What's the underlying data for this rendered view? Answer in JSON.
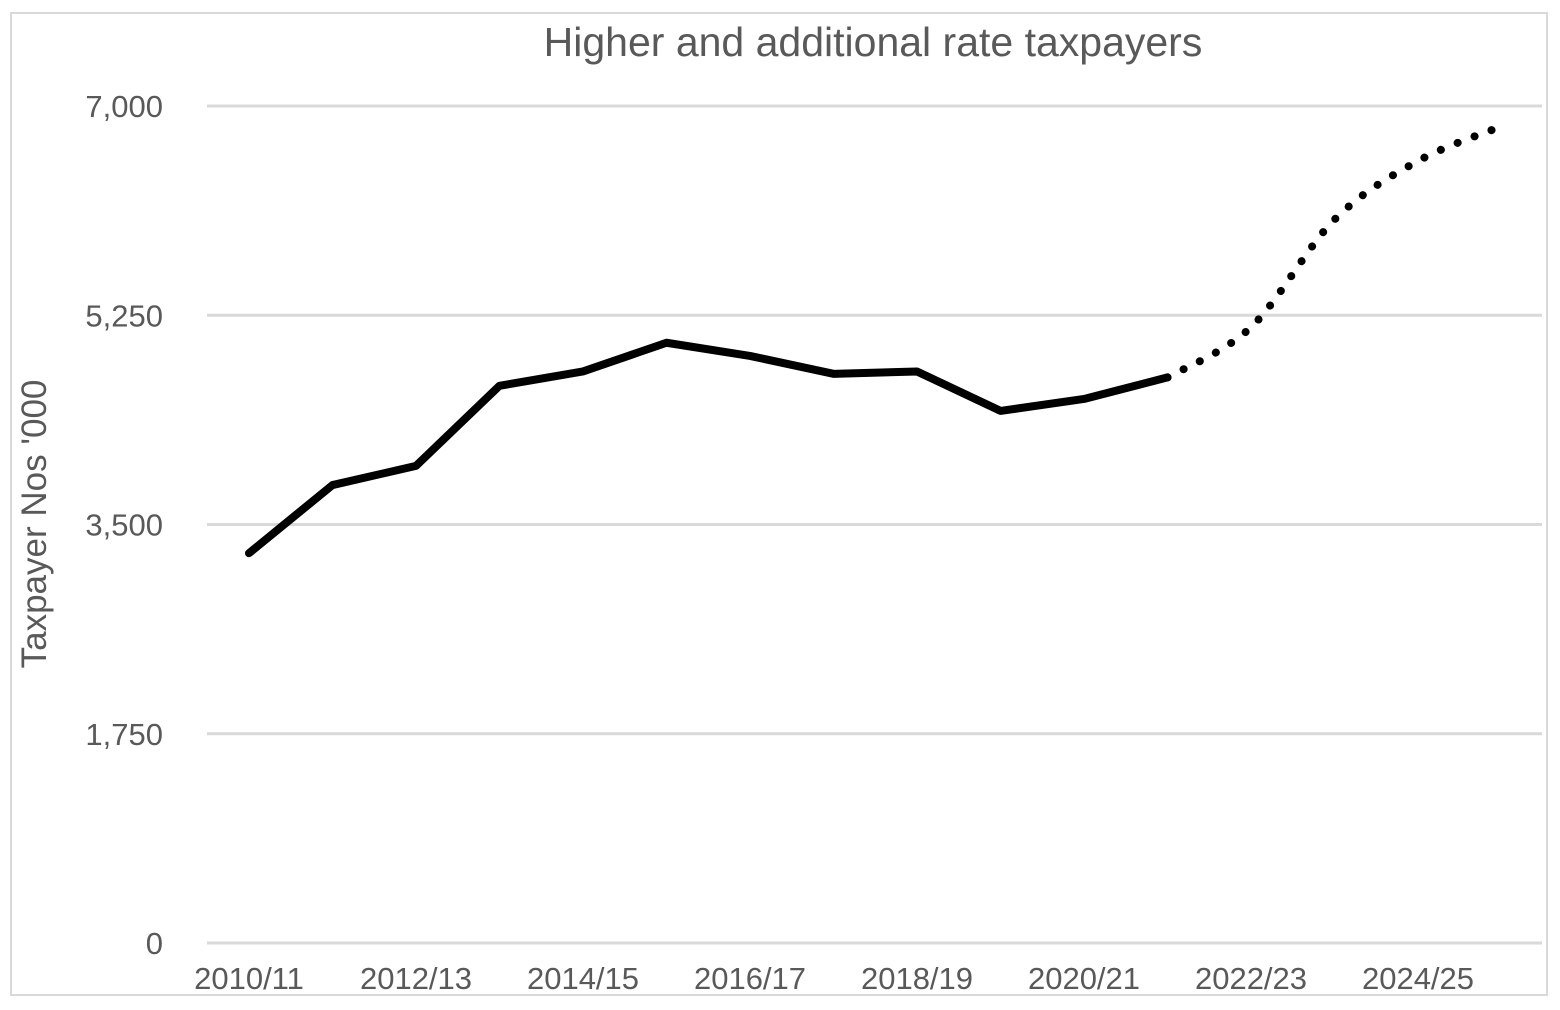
{
  "chart_data": {
    "type": "line",
    "title": "Higher and additional rate taxpayers",
    "xlabel": "",
    "ylabel": "Taxpayer Nos '000",
    "categories": [
      "2010/11",
      "2011/12",
      "2012/13",
      "2013/14",
      "2014/15",
      "2015/16",
      "2016/17",
      "2017/18",
      "2018/19",
      "2019/20",
      "2020/21",
      "2021/22",
      "2022/23",
      "2023/24",
      "2024/25",
      "2025/26"
    ],
    "xtick_labels": [
      "2010/11",
      "2012/13",
      "2014/15",
      "2016/17",
      "2018/19",
      "2020/21",
      "2022/23",
      "2024/25"
    ],
    "ylim": [
      0,
      7000
    ],
    "yticks": [
      0,
      1750,
      3500,
      5250,
      7000
    ],
    "ytick_labels": [
      "0",
      "1,750",
      "3,500",
      "5,250",
      "7,000"
    ],
    "grid": true,
    "legend": "none",
    "series": [
      {
        "style": "solid",
        "color": "#000000",
        "values": [
          3260,
          3830,
          3990,
          4660,
          4780,
          5020,
          4910,
          4760,
          4780,
          4450,
          4550,
          4730,
          null,
          null,
          null,
          null
        ]
      },
      {
        "style": "dotted",
        "color": "#000000",
        "values": [
          null,
          null,
          null,
          null,
          null,
          null,
          null,
          null,
          null,
          null,
          null,
          4730,
          5150,
          6050,
          6540,
          6830
        ]
      }
    ]
  }
}
